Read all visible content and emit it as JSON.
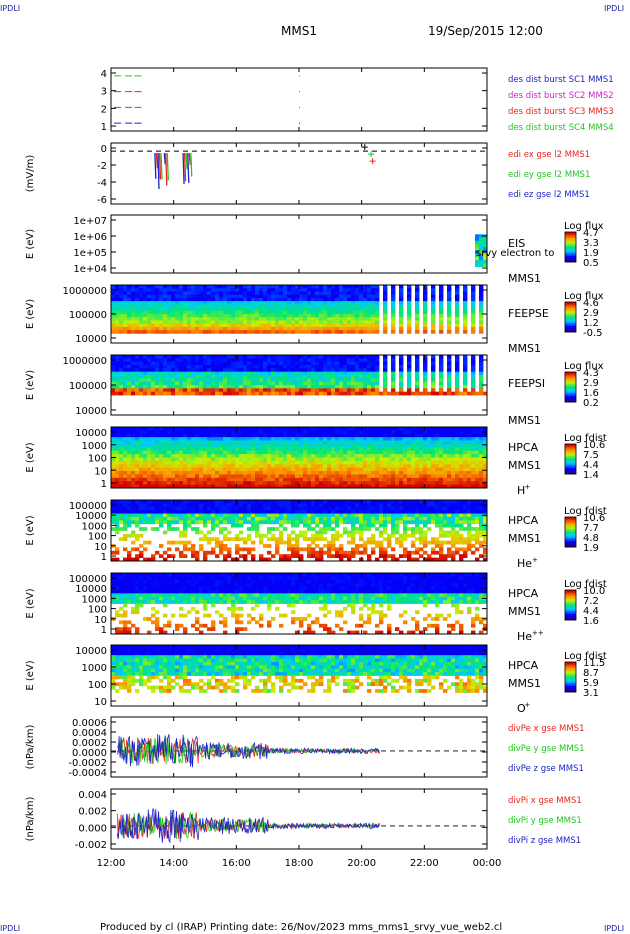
{
  "header": {
    "logo": "IPDLI",
    "title": "MMS1",
    "datetime": "19/Sep/2015 12:00"
  },
  "footer": {
    "text": "Produced by cl (IRAP)   Printing date: 26/Nov/2023   mms_mms1_srvy_vue_web2.cl"
  },
  "x_axis": {
    "ticks": [
      "12:00",
      "14:00",
      "16:00",
      "18:00",
      "20:00",
      "22:00",
      "00:00"
    ],
    "range_hours": [
      12,
      24
    ]
  },
  "colors": {
    "red": "#e8241c",
    "green": "#1ec81e",
    "blue": "#1e22c8",
    "magenta": "#d21ed2"
  },
  "chart_data": [
    {
      "type": "scatter",
      "ylabel": "",
      "yticks": [
        "4",
        "3",
        "2",
        "1"
      ],
      "ylim": [
        0.5,
        4.5
      ],
      "legend": [
        {
          "text": "des dist burst SC1 MMS1",
          "color": "#1e22c8"
        },
        {
          "text": "des dist burst SC2 MMS2",
          "color": "#d21ed2"
        },
        {
          "text": "des dist burst SC3 MMS3",
          "color": "#e8241c"
        },
        {
          "text": "des dist burst SC4 MMS4",
          "color": "#1ec81e"
        }
      ],
      "series": [
        {
          "name": "des dist burst SC1 MMS1",
          "y": 1,
          "x_start": [
            12.1,
            12.45,
            12.75
          ],
          "color": "#1e22c8"
        },
        {
          "name": "des dist burst SC2 MMS2",
          "y": 2,
          "x_start": [
            12.1,
            12.45,
            12.75
          ],
          "color": "#d21ed2"
        },
        {
          "name": "des dist burst SC3 MMS3",
          "y": 3,
          "x_start": [
            12.1,
            12.45,
            12.75
          ],
          "color": "#e8241c"
        },
        {
          "name": "des dist burst SC4 MMS4",
          "y": 4,
          "x_start": [
            12.1,
            12.45,
            12.75
          ],
          "color": "#1ec81e"
        }
      ]
    },
    {
      "type": "line",
      "ylabel": "(mV/m)",
      "yticks": [
        "0",
        "-2",
        "-4",
        "-6"
      ],
      "ylim": [
        -6.5,
        1
      ],
      "legend": [
        {
          "text": "edi ex gse l2 MMS1",
          "color": "#e8241c"
        },
        {
          "text": "edi ey gse l2 MMS1",
          "color": "#1ec81e"
        },
        {
          "text": "edi ez gse l2 MMS1",
          "color": "#1e22c8"
        }
      ],
      "zero_line": true
    },
    {
      "type": "heatmap",
      "ylabel": "E (eV)",
      "yticks": [
        "1e+07",
        "1e+06",
        "1e+05",
        "1e+04"
      ],
      "label_lines": [
        "EIS",
        "MMS1"
      ],
      "overlay_text": "srvy electron to",
      "colorbar": {
        "title": "Log flux",
        "ticks": [
          "4.7",
          "3.3",
          "1.9",
          "0.5"
        ]
      }
    },
    {
      "type": "heatmap",
      "ylabel": "E (eV)",
      "yticks": [
        "1000000",
        "100000",
        "10000"
      ],
      "label_lines": [
        "FEEPSE",
        "MMS1"
      ],
      "colorbar": {
        "title": "Log flux",
        "ticks": [
          "4.6",
          "2.9",
          "1.2",
          "-0.5"
        ]
      }
    },
    {
      "type": "heatmap",
      "ylabel": "E (eV)",
      "yticks": [
        "1000000",
        "100000",
        "10000"
      ],
      "label_lines": [
        "FEEPSI",
        "MMS1"
      ],
      "colorbar": {
        "title": "Log flux",
        "ticks": [
          "4.3",
          "2.9",
          "1.6",
          "0.2"
        ]
      }
    },
    {
      "type": "heatmap",
      "ylabel": "E (eV)",
      "yticks": [
        "10000",
        "1000",
        "100",
        "10",
        "1"
      ],
      "label_lines": [
        "HPCA",
        "MMS1"
      ],
      "species": "H",
      "species_charge": "+",
      "colorbar": {
        "title": "Log fdist",
        "ticks": [
          "10.6",
          "7.5",
          "4.4",
          "1.4"
        ]
      }
    },
    {
      "type": "heatmap",
      "ylabel": "E (eV)",
      "yticks": [
        "100000",
        "10000",
        "1000",
        "100",
        "10",
        "1"
      ],
      "label_lines": [
        "HPCA",
        "MMS1"
      ],
      "species": "He",
      "species_charge": "+",
      "colorbar": {
        "title": "Log fdist",
        "ticks": [
          "10.6",
          "7.7",
          "4.8",
          "1.9"
        ]
      }
    },
    {
      "type": "heatmap",
      "ylabel": "E (eV)",
      "yticks": [
        "100000",
        "10000",
        "1000",
        "100",
        "10",
        "1"
      ],
      "label_lines": [
        "HPCA",
        "MMS1"
      ],
      "species": "He",
      "species_charge": "++",
      "colorbar": {
        "title": "Log fdist",
        "ticks": [
          "10.0",
          "7.2",
          "4.4",
          "1.6"
        ]
      }
    },
    {
      "type": "heatmap",
      "ylabel": "E (eV)",
      "yticks": [
        "10000",
        "1000",
        "100",
        "10"
      ],
      "label_lines": [
        "HPCA",
        "MMS1"
      ],
      "species": "O",
      "species_charge": "+",
      "colorbar": {
        "title": "Log fdist",
        "ticks": [
          "11.5",
          "8.7",
          "5.9",
          "3.1"
        ]
      }
    },
    {
      "type": "line",
      "ylabel": "(nPa/km)",
      "yticks": [
        "0.0006",
        "0.0004",
        "0.0002",
        "0.0000",
        "-0.0002",
        "-0.0004"
      ],
      "ylim": [
        -0.0005,
        0.00065
      ],
      "legend": [
        {
          "text": "divPe x gse MMS1",
          "color": "#e8241c"
        },
        {
          "text": "divPe y gse MMS1",
          "color": "#1ec81e"
        },
        {
          "text": "divPe z gse MMS1",
          "color": "#1e22c8"
        }
      ],
      "zero_line": true
    },
    {
      "type": "line",
      "ylabel": "(nPa/km)",
      "yticks": [
        "0.004",
        "0.002",
        "0.000",
        "-0.002"
      ],
      "ylim": [
        -0.003,
        0.0048
      ],
      "legend": [
        {
          "text": "divPi x gse MMS1",
          "color": "#e8241c"
        },
        {
          "text": "divPi y gse MMS1",
          "color": "#1ec81e"
        },
        {
          "text": "divPi z gse MMS1",
          "color": "#1e22c8"
        }
      ],
      "zero_line": true
    }
  ]
}
